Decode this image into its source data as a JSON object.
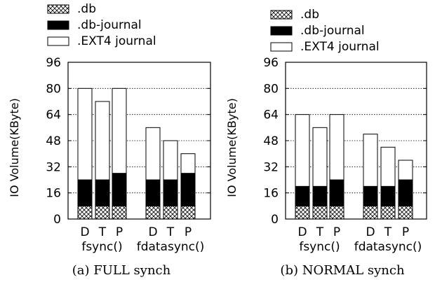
{
  "chart_data": [
    {
      "type": "bar",
      "stacked": true,
      "caption": "(a) FULL synch",
      "ylabel": "IO Volume(KByte)",
      "ylim": [
        0,
        96
      ],
      "yticks": [
        0,
        16,
        32,
        48,
        64,
        80,
        96
      ],
      "grid": "horizontal dotted",
      "legend_placement": "top",
      "groups": [
        {
          "label": "fsync()",
          "categories": [
            "D",
            "T",
            "P"
          ]
        },
        {
          "label": "fdatasync()",
          "categories": [
            "D",
            "T",
            "P"
          ]
        }
      ],
      "series": [
        {
          "name": ".db",
          "pattern": "crosshatch",
          "values": [
            8,
            8,
            8,
            8,
            8,
            8
          ]
        },
        {
          "name": ".db-journal",
          "color": "#000000",
          "values": [
            16,
            16,
            20,
            16,
            16,
            20
          ]
        },
        {
          "name": ".EXT4 journal",
          "color": "#ffffff",
          "values": [
            56,
            48,
            52,
            32,
            24,
            12
          ]
        }
      ]
    },
    {
      "type": "bar",
      "stacked": true,
      "caption": "(b) NORMAL synch",
      "ylabel": "IO Volume(KByte)",
      "ylim": [
        0,
        96
      ],
      "yticks": [
        0,
        16,
        32,
        48,
        64,
        80,
        96
      ],
      "grid": "horizontal dotted",
      "legend_placement": "top",
      "groups": [
        {
          "label": "fsync()",
          "categories": [
            "D",
            "T",
            "P"
          ]
        },
        {
          "label": "fdatasync()",
          "categories": [
            "D",
            "T",
            "P"
          ]
        }
      ],
      "series": [
        {
          "name": ".db",
          "pattern": "crosshatch",
          "values": [
            8,
            8,
            8,
            8,
            8,
            8
          ]
        },
        {
          "name": ".db-journal",
          "color": "#000000",
          "values": [
            12,
            12,
            16,
            12,
            12,
            16
          ]
        },
        {
          "name": ".EXT4 journal",
          "color": "#ffffff",
          "values": [
            44,
            36,
            40,
            32,
            24,
            12
          ]
        }
      ]
    }
  ]
}
